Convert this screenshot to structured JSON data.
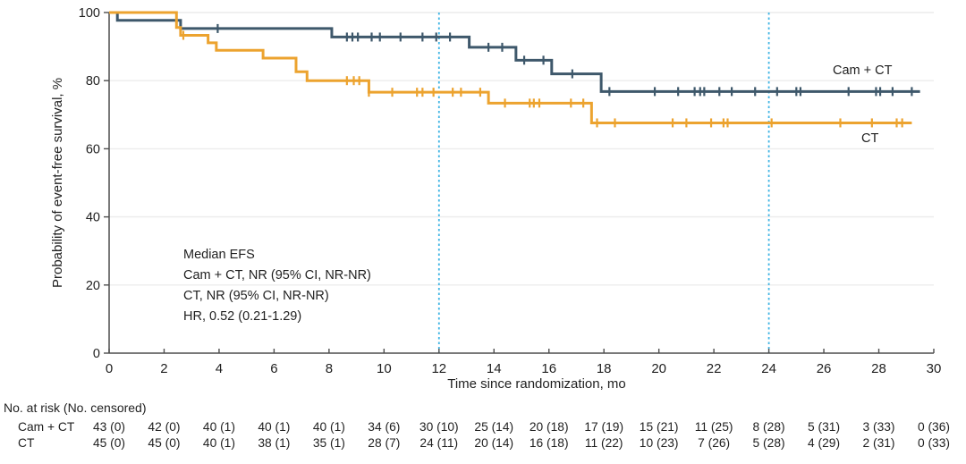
{
  "figure": {
    "y_axis_title": "Probability of event-free survival, %",
    "x_axis_title": "Time since randomization, mo",
    "annotation": {
      "lines": [
        "Median EFS",
        "Cam + CT, NR (95% CI, NR-NR)",
        "CT, NR (95% CI, NR-NR)",
        "HR, 0.52 (0.21-1.29)"
      ]
    },
    "curve_labels": {
      "cam_ct": "Cam + CT",
      "ct": "CT"
    }
  },
  "chart_data": {
    "type": "line",
    "subtype": "kaplan-meier-step",
    "title": "",
    "xlabel": "Time since randomization, mo",
    "ylabel": "Probability of event-free survival, %",
    "xlim": [
      0,
      30
    ],
    "ylim": [
      0,
      100
    ],
    "x_ticks": [
      0,
      2,
      4,
      6,
      8,
      10,
      12,
      14,
      16,
      18,
      20,
      22,
      24,
      26,
      28,
      30
    ],
    "y_ticks": [
      0,
      20,
      40,
      60,
      80,
      100
    ],
    "grid": "horizontal-light",
    "legend_position": "inline-right",
    "reference_lines_x": [
      12,
      24
    ],
    "series": [
      {
        "name": "Cam + CT",
        "color": "#3E586B",
        "end_t": 29.5,
        "steps": [
          [
            0,
            100
          ],
          [
            0.3,
            97.7
          ],
          [
            2.6,
            95.3
          ],
          [
            8.1,
            92.8
          ],
          [
            13.1,
            89.8
          ],
          [
            14.8,
            86.0
          ],
          [
            16.1,
            82.0
          ],
          [
            17.9,
            76.8
          ]
        ],
        "censor_marks": [
          [
            3.95,
            95.3
          ],
          [
            8.65,
            92.8
          ],
          [
            8.85,
            92.8
          ],
          [
            9.05,
            92.8
          ],
          [
            9.55,
            92.8
          ],
          [
            9.85,
            92.8
          ],
          [
            10.6,
            92.8
          ],
          [
            11.4,
            92.8
          ],
          [
            11.9,
            92.8
          ],
          [
            12.4,
            92.8
          ],
          [
            13.8,
            89.8
          ],
          [
            14.3,
            89.8
          ],
          [
            15.1,
            86.0
          ],
          [
            15.8,
            86.0
          ],
          [
            16.85,
            82.0
          ],
          [
            18.2,
            76.8
          ],
          [
            19.85,
            76.8
          ],
          [
            20.7,
            76.8
          ],
          [
            21.3,
            76.8
          ],
          [
            21.5,
            76.8
          ],
          [
            21.65,
            76.8
          ],
          [
            22.2,
            76.8
          ],
          [
            22.65,
            76.8
          ],
          [
            23.5,
            76.8
          ],
          [
            24.3,
            76.8
          ],
          [
            25.0,
            76.8
          ],
          [
            25.15,
            76.8
          ],
          [
            26.9,
            76.8
          ],
          [
            27.9,
            76.8
          ],
          [
            28.05,
            76.8
          ],
          [
            28.5,
            76.8
          ],
          [
            29.2,
            76.8
          ]
        ]
      },
      {
        "name": "CT",
        "color": "#ECA32F",
        "end_t": 29.2,
        "steps": [
          [
            0,
            100
          ],
          [
            2.45,
            95.6
          ],
          [
            2.6,
            93.3
          ],
          [
            3.6,
            91.1
          ],
          [
            3.9,
            88.9
          ],
          [
            5.6,
            86.6
          ],
          [
            6.8,
            82.6
          ],
          [
            7.2,
            80.0
          ],
          [
            9.45,
            76.6
          ],
          [
            13.8,
            73.4
          ],
          [
            17.55,
            67.6
          ]
        ],
        "censor_marks": [
          [
            2.7,
            93.3
          ],
          [
            8.65,
            80.0
          ],
          [
            8.9,
            80.0
          ],
          [
            9.1,
            80.0
          ],
          [
            9.45,
            76.6
          ],
          [
            10.3,
            76.6
          ],
          [
            11.2,
            76.6
          ],
          [
            11.4,
            76.6
          ],
          [
            11.8,
            76.6
          ],
          [
            12.5,
            76.6
          ],
          [
            12.8,
            76.6
          ],
          [
            13.5,
            76.6
          ],
          [
            14.4,
            73.4
          ],
          [
            15.3,
            73.4
          ],
          [
            15.45,
            73.4
          ],
          [
            15.65,
            73.4
          ],
          [
            16.8,
            73.4
          ],
          [
            17.25,
            73.4
          ],
          [
            17.75,
            67.6
          ],
          [
            18.4,
            67.6
          ],
          [
            20.5,
            67.6
          ],
          [
            21.0,
            67.6
          ],
          [
            21.9,
            67.6
          ],
          [
            22.35,
            67.6
          ],
          [
            22.5,
            67.6
          ],
          [
            24.1,
            67.6
          ],
          [
            26.6,
            67.6
          ],
          [
            27.75,
            67.6
          ],
          [
            28.65,
            67.6
          ],
          [
            28.85,
            67.6
          ]
        ]
      }
    ]
  },
  "risk_table": {
    "header": "No. at risk (No. censored)",
    "time_points": [
      0,
      2,
      4,
      6,
      8,
      10,
      12,
      14,
      16,
      18,
      20,
      22,
      24,
      26,
      28,
      30
    ],
    "rows": [
      {
        "label": "Cam + CT",
        "values": [
          "43 (0)",
          "42 (0)",
          "40 (1)",
          "40 (1)",
          "40 (1)",
          "34 (6)",
          "30 (10)",
          "25 (14)",
          "20 (18)",
          "17 (19)",
          "15 (21)",
          "11 (25)",
          "8 (28)",
          "5 (31)",
          "3 (33)",
          "0 (36)"
        ]
      },
      {
        "label": "CT",
        "values": [
          "45 (0)",
          "45 (0)",
          "40 (1)",
          "38 (1)",
          "35 (1)",
          "28 (7)",
          "24 (11)",
          "20 (14)",
          "16 (18)",
          "11 (22)",
          "10 (23)",
          "7 (26)",
          "5 (28)",
          "4 (29)",
          "2 (31)",
          "0 (33)"
        ]
      }
    ]
  },
  "colors": {
    "cam_ct_line": "#3E586B",
    "ct_line": "#ECA32F",
    "reference_line": "#3FB4E4",
    "gridline": "#ECECEC",
    "axis": "#4D4D4D",
    "text": "#1F1F1F"
  }
}
